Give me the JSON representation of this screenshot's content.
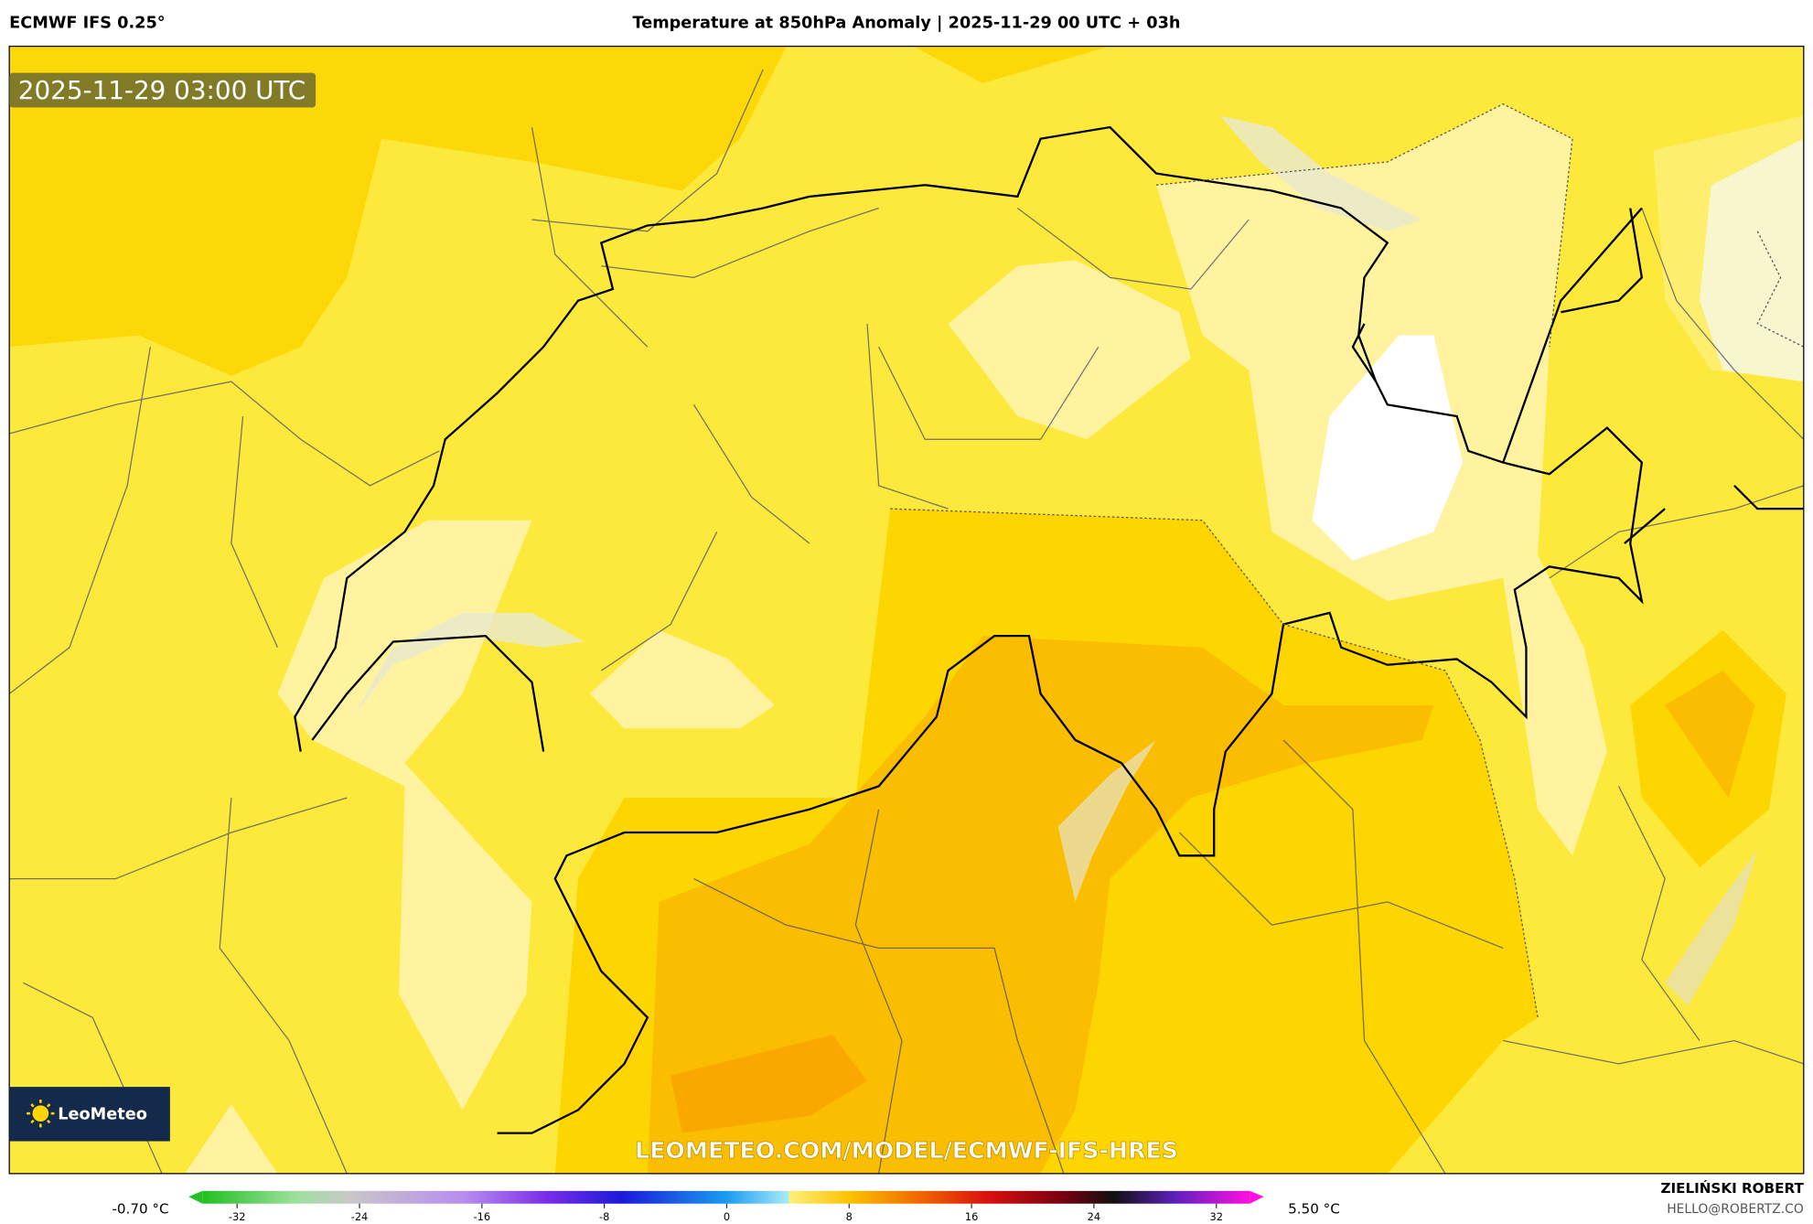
{
  "header": {
    "model": "ECMWF IFS 0.25°",
    "title": "Temperature at 850hPa Anomaly | 2025-11-29 00 UTC + 03h"
  },
  "map": {
    "timestamp": "2025-11-29 03:00 UTC",
    "watermark": "LEOMETEO.COM/MODEL/ECMWF-IFS-HRES",
    "logo": "LeoMeteo"
  },
  "colorbar": {
    "min_label": "-0.70 °C",
    "max_label": "5.50 °C",
    "ticks": [
      -32,
      -24,
      -16,
      -8,
      0,
      8,
      16,
      24,
      32
    ]
  },
  "credit": {
    "author": "ZIELIŃSKI ROBERT",
    "contact": "HELLO@ROBERTZ.CO"
  }
}
